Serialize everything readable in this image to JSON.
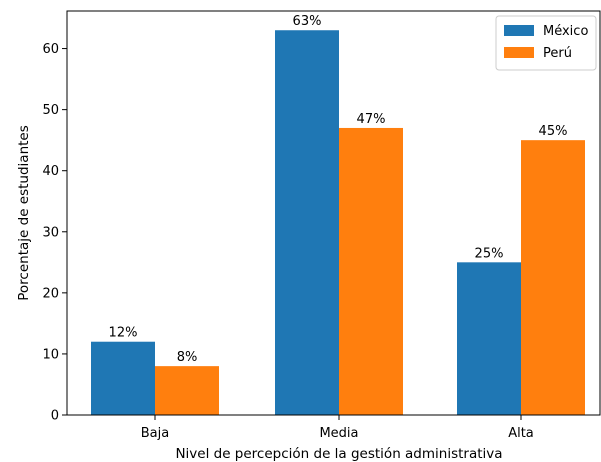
{
  "chart_data": {
    "type": "bar",
    "title": "",
    "xlabel": "Nivel de percepción de la gestión administrativa",
    "ylabel": "Porcentaje de estudiantes",
    "categories": [
      "Baja",
      "Media",
      "Alta"
    ],
    "series": [
      {
        "name": "México",
        "values": [
          12,
          63,
          25
        ],
        "color": "#1f77b4",
        "labels": [
          "12%",
          "63%",
          "25%"
        ]
      },
      {
        "name": "Perú",
        "values": [
          8,
          47,
          45
        ],
        "color": "#ff7f0e",
        "labels": [
          "8%",
          "47%",
          "45%"
        ]
      }
    ],
    "ylim": [
      0,
      66.15
    ],
    "yticks": [
      0,
      10,
      20,
      30,
      40,
      50,
      60
    ],
    "legend_position": "top-right",
    "grid": false
  }
}
